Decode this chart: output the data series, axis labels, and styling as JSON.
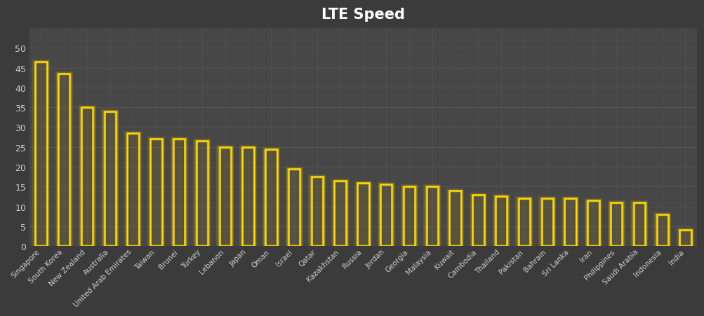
{
  "title": "LTE Speed",
  "categories": [
    "Singapore",
    "South Korea",
    "New Zealand",
    "Australia",
    "United Arab Emirates",
    "Taiwan",
    "Brunei",
    "Turkey",
    "Lebanon",
    "Japan",
    "Oman",
    "Israel",
    "Qatar",
    "Kazakhstan",
    "Russia",
    "Jordan",
    "Georgia",
    "Malaysia",
    "Kuwait",
    "Cambodia",
    "Thailand",
    "Pakistan",
    "Bahrain",
    "Sri Lanka",
    "Iran",
    "Philippines",
    "Saudi Arabia",
    "Indonesia",
    "India"
  ],
  "values": [
    46.5,
    43.5,
    35,
    34,
    28.5,
    27,
    27,
    26.5,
    25,
    25,
    24.5,
    19.5,
    17.5,
    16.5,
    16,
    15.5,
    15,
    15,
    14,
    13,
    12.5,
    12,
    12,
    12,
    11.5,
    11,
    11,
    8,
    4
  ],
  "bar_color": "#FFD700",
  "background_color": "#3b3b3b",
  "plot_background_color": "#474747",
  "grid_color": "#5a5a5a",
  "text_color": "#cccccc",
  "title_color": "#ffffff",
  "ylim": [
    0,
    55
  ],
  "yticks": [
    0,
    5,
    10,
    15,
    20,
    25,
    30,
    35,
    40,
    45,
    50
  ]
}
